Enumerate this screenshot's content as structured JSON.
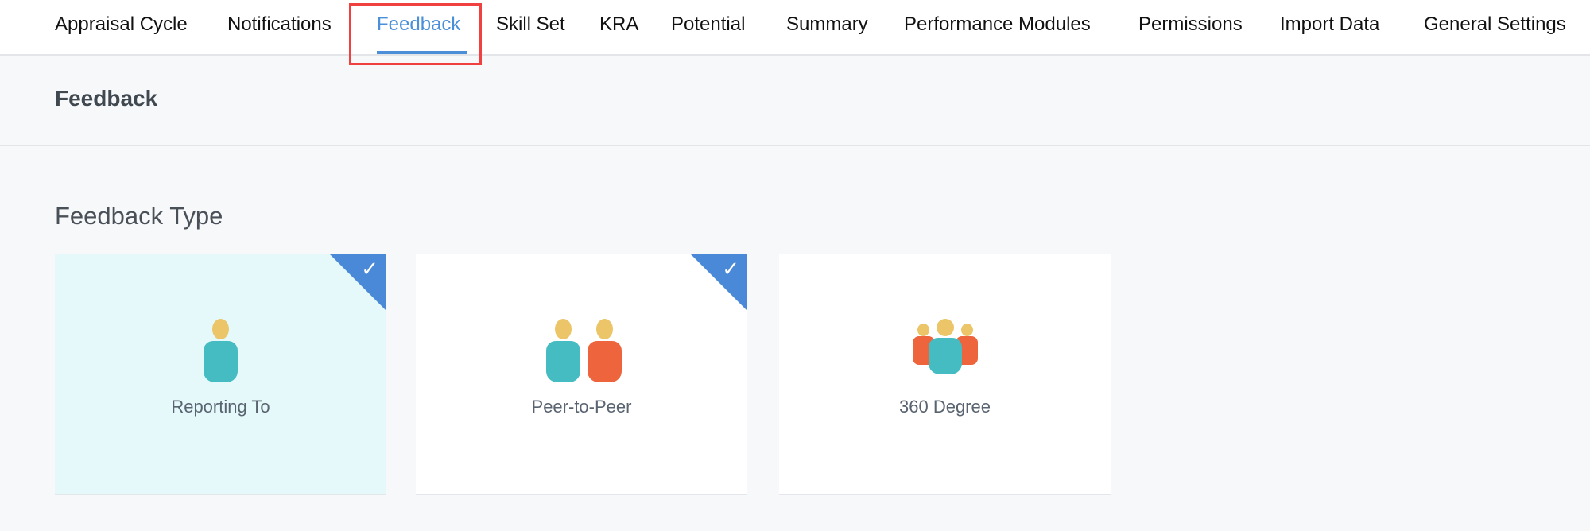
{
  "tabs": [
    {
      "label": "Appraisal Cycle"
    },
    {
      "label": "Notifications"
    },
    {
      "label": "Feedback",
      "active": true
    },
    {
      "label": "Skill Set"
    },
    {
      "label": "KRA"
    },
    {
      "label": "Potential"
    },
    {
      "label": "Summary"
    },
    {
      "label": "Performance Modules"
    },
    {
      "label": "Permissions"
    },
    {
      "label": "Import Data"
    },
    {
      "label": "General Settings"
    }
  ],
  "page_title": "Feedback",
  "section_title": "Feedback Type",
  "cards": [
    {
      "label": "Reporting To",
      "selected": true,
      "icon": "single-person-icon"
    },
    {
      "label": "Peer-to-Peer",
      "selected": true,
      "icon": "two-people-icon"
    },
    {
      "label": "360 Degree",
      "selected": false,
      "icon": "group-people-icon"
    }
  ],
  "colors": {
    "accent": "#4a8fd8",
    "highlight_box": "#f04040",
    "selected_card": "#e5f9fb",
    "teal": "#45bcc2",
    "orange": "#ee643c",
    "head": "#ebc567"
  }
}
